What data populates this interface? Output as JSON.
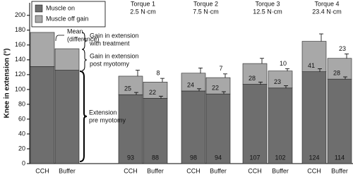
{
  "chart_data": {
    "type": "stacked-bar",
    "y_label": "Knee in extension (°)",
    "categories": [
      "CCH",
      "Buffer",
      "CCH",
      "Buffer",
      "CCH",
      "Buffer",
      "CCH",
      "Buffer",
      "CCH",
      "Buffer"
    ],
    "groups": [
      null,
      "Torque 1",
      "Torque 2",
      "Torque 3",
      "Torque 4"
    ],
    "group_sublabels": [
      null,
      "2.5 N·cm",
      "7.5 N·cm",
      "12.5 N·cm",
      "23.4 N·cm"
    ],
    "differences": [
      null,
      8,
      7,
      10,
      23
    ],
    "series": [
      {
        "name": "Muscle on",
        "color": "#6e6e6e",
        "values": [
          131,
          126,
          93,
          88,
          98,
          94,
          107,
          102,
          124,
          114
        ],
        "errors": [
          null,
          null,
          3,
          3,
          3,
          3,
          3,
          3,
          4,
          3
        ],
        "value_labels": [
          null,
          null,
          "93",
          "88",
          "98",
          "94",
          "107",
          "102",
          "124",
          "114"
        ]
      },
      {
        "name": "Muscle off gain",
        "color": "#a8a8a8",
        "values": [
          46,
          29,
          25,
          22,
          24,
          22,
          28,
          23,
          41,
          28
        ],
        "errors": [
          null,
          null,
          8,
          5,
          7,
          5,
          7,
          3,
          10,
          6
        ],
        "value_labels": [
          null,
          null,
          "25",
          "22",
          "24",
          "22",
          "28",
          "23",
          "41",
          "28"
        ]
      }
    ],
    "annotations": [
      [
        "Mean",
        "(difference)"
      ],
      [
        "Gain in extension",
        "with treatment"
      ],
      [
        "Gain in extension",
        "post myotomy"
      ],
      [
        "Extension",
        "pre myotomy"
      ]
    ],
    "ylim": [
      0,
      215
    ],
    "yticks": [
      0,
      20,
      40,
      60,
      80,
      100,
      120,
      140,
      160,
      180,
      200
    ],
    "legend": "top-left"
  }
}
